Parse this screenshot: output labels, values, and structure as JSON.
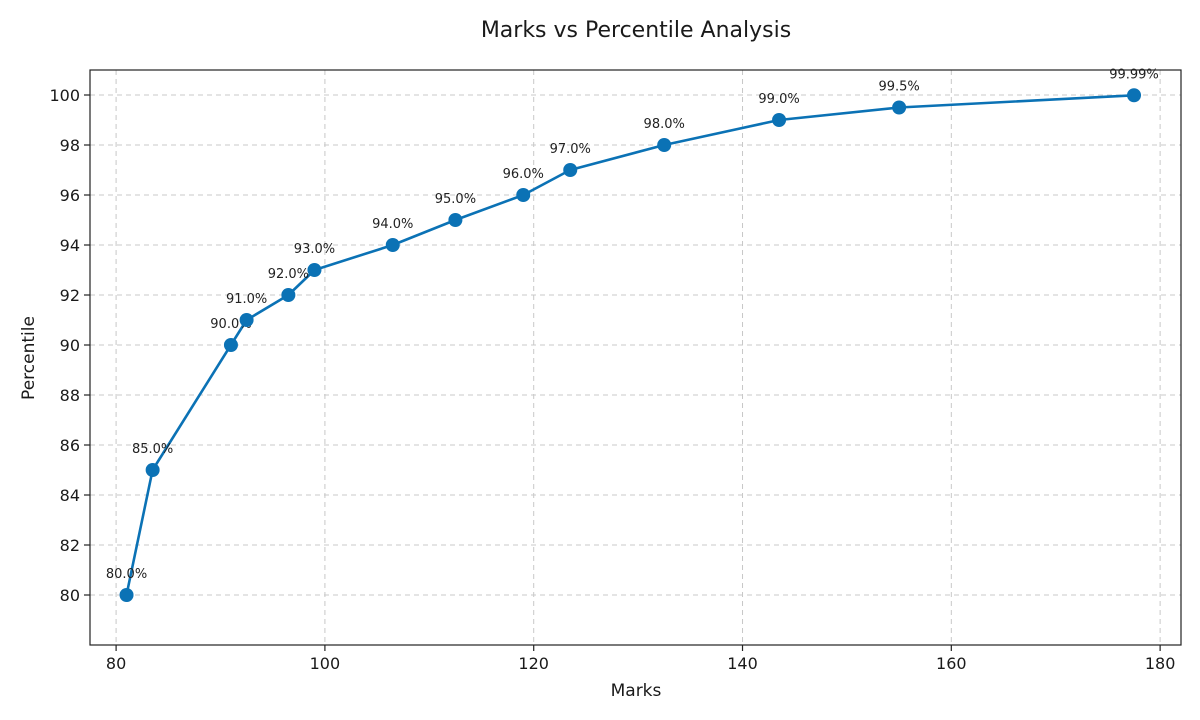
{
  "chart_data": {
    "type": "line",
    "title": "Marks vs Percentile Analysis",
    "xlabel": "Marks",
    "ylabel": "Percentile",
    "xlim": [
      77.5,
      182
    ],
    "ylim": [
      78,
      101
    ],
    "xticks": [
      80,
      100,
      120,
      140,
      160,
      180
    ],
    "yticks": [
      80,
      82,
      84,
      86,
      88,
      90,
      92,
      94,
      96,
      98,
      100
    ],
    "grid": true,
    "color": "#0b72b5",
    "series": [
      {
        "x": [
          81,
          83.5,
          91,
          92.5,
          96.5,
          99,
          106.5,
          112.5,
          119,
          123.5,
          132.5,
          143.5,
          155,
          177.5
        ],
        "y": [
          80,
          85,
          90,
          91,
          92,
          93,
          94,
          95,
          96,
          97,
          98,
          99,
          99.5,
          99.99
        ],
        "labels": [
          "80.0%",
          "85.0%",
          "90.0%",
          "91.0%",
          "92.0%",
          "93.0%",
          "94.0%",
          "95.0%",
          "96.0%",
          "97.0%",
          "98.0%",
          "99.0%",
          "99.5%",
          "99.99%"
        ]
      }
    ]
  }
}
